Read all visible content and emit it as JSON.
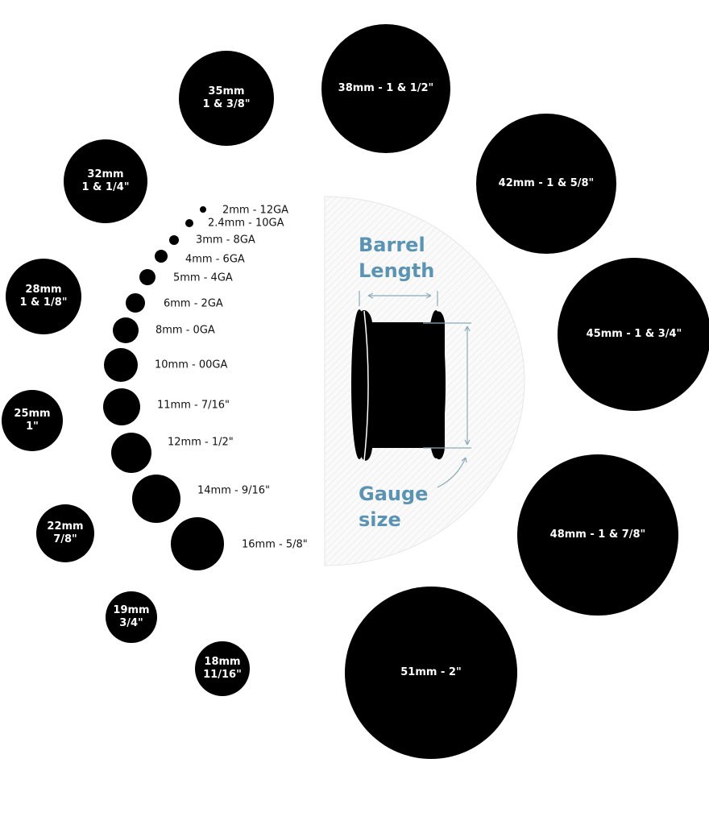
{
  "small_sizes": [
    {
      "label": "2mm - 12GA"
    },
    {
      "label": "2.4mm - 10GA"
    },
    {
      "label": "3mm - 8GA"
    },
    {
      "label": "4mm - 6GA"
    },
    {
      "label": "5mm - 4GA"
    },
    {
      "label": "6mm - 2GA"
    },
    {
      "label": "8mm - 0GA"
    },
    {
      "label": "10mm - 00GA"
    },
    {
      "label": "11mm - 7/16\""
    },
    {
      "label": "12mm - 1/2\""
    },
    {
      "label": "14mm - 9/16\""
    },
    {
      "label": "16mm - 5/8\""
    }
  ],
  "large_sizes": [
    {
      "line1": "35mm",
      "line2": "1 & 3/8\""
    },
    {
      "line1": "38mm - 1 & 1/2\"",
      "line2": ""
    },
    {
      "line1": "42mm - 1 & 5/8\"",
      "line2": ""
    },
    {
      "line1": "32mm",
      "line2": "1 & 1/4\""
    },
    {
      "line1": "28mm",
      "line2": "1 & 1/8\""
    },
    {
      "line1": "45mm - 1 & 3/4\"",
      "line2": ""
    },
    {
      "line1": "25mm",
      "line2": "1\""
    },
    {
      "line1": "48mm - 1 & 7/8\"",
      "line2": ""
    },
    {
      "line1": "22mm",
      "line2": "7/8\""
    },
    {
      "line1": "19mm",
      "line2": "3/4\""
    },
    {
      "line1": "18mm",
      "line2": "11/16\""
    },
    {
      "line1": "51mm - 2\"",
      "line2": ""
    }
  ],
  "diagram": {
    "barrel_label_1": "Barrel",
    "barrel_label_2": "Length",
    "gauge_label_1": "Gauge",
    "gauge_label_2": "size",
    "accent_color": "#5b93b5"
  }
}
